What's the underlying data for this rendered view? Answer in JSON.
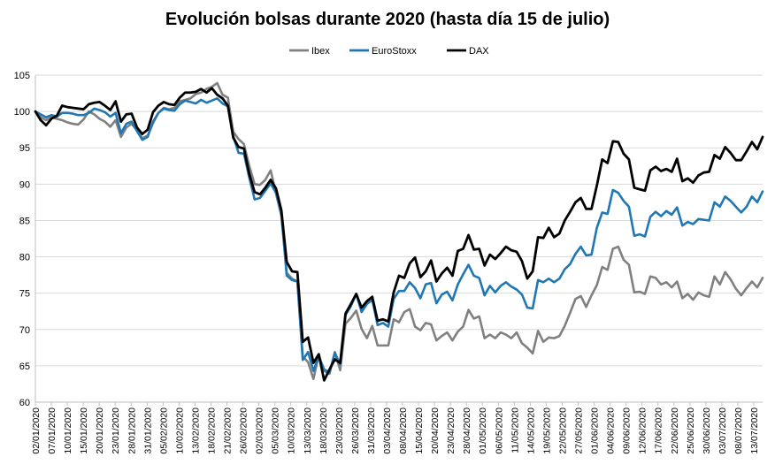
{
  "chart_data": {
    "type": "line",
    "title": "Evolución bolsas durante 2020 (hasta día 15 de julio)",
    "legend_position": "top",
    "grid": {
      "horizontal": true,
      "vertical": false
    },
    "ylim": [
      60,
      105
    ],
    "yticks": [
      "60",
      "65",
      "70",
      "75",
      "80",
      "85",
      "90",
      "95",
      "100",
      "105"
    ],
    "x_tick_labels": [
      "02/01/2020",
      "07/01/2020",
      "10/01/2020",
      "15/01/2020",
      "20/01/2020",
      "23/01/2020",
      "28/01/2020",
      "31/01/2020",
      "05/02/2020",
      "10/02/2020",
      "13/02/2020",
      "18/02/2020",
      "21/02/2020",
      "26/02/2020",
      "02/03/2020",
      "05/03/2020",
      "10/03/2020",
      "13/03/2020",
      "18/03/2020",
      "23/03/2020",
      "26/03/2020",
      "31/03/2020",
      "03/04/2020",
      "08/04/2020",
      "15/04/2020",
      "20/04/2020",
      "23/04/2020",
      "28/04/2020",
      "01/05/2020",
      "06/05/2020",
      "11/05/2020",
      "14/05/2020",
      "19/05/2020",
      "22/05/2020",
      "27/05/2020",
      "01/06/2020",
      "04/06/2020",
      "09/06/2020",
      "12/06/2020",
      "17/06/2020",
      "22/06/2020",
      "25/06/2020",
      "30/06/2020",
      "03/07/2020",
      "08/07/2020",
      "13/07/2020"
    ],
    "series": [
      {
        "name": "Ibex",
        "color": "#808080",
        "values": [
          100,
          99.2,
          98.8,
          99.2,
          99.0,
          98.8,
          98.5,
          98.3,
          98.2,
          98.9,
          100.0,
          99.6,
          99.0,
          98.6,
          97.9,
          98.8,
          96.5,
          97.8,
          98.3,
          97.4,
          96.3,
          96.7,
          98.4,
          99.8,
          100.5,
          100.3,
          100.5,
          101.4,
          101.6,
          101.8,
          102.4,
          102.6,
          103.1,
          103.4,
          103.9,
          102.3,
          101.9,
          97.2,
          96.2,
          95.5,
          92.5,
          90.0,
          89.9,
          90.6,
          91.9,
          88.7,
          85.6,
          77.8,
          77.0,
          76.6,
          66.3,
          65.5,
          63.2,
          66.5,
          64.3,
          63.9,
          66.9,
          64.4,
          70.8,
          71.6,
          72.6,
          70.1,
          68.8,
          70.5,
          67.8,
          67.8,
          67.8,
          71.4,
          71.0,
          72.4,
          72.8,
          70.4,
          69.9,
          70.9,
          70.7,
          68.5,
          69.1,
          69.6,
          68.5,
          69.7,
          70.4,
          72.7,
          71.5,
          71.8,
          68.8,
          69.3,
          68.8,
          69.6,
          69.3,
          68.8,
          69.6,
          68.1,
          67.5,
          66.7,
          69.8,
          68.3,
          68.9,
          68.8,
          69.1,
          70.5,
          72.3,
          74.2,
          74.6,
          73.1,
          74.7,
          76.1,
          78.6,
          78.2,
          81.1,
          81.4,
          79.6,
          78.9,
          75.1,
          75.2,
          74.9,
          77.3,
          77.1,
          76.2,
          76.5,
          75.8,
          76.6,
          74.3,
          74.9,
          74.1,
          75.1,
          74.7,
          74.5,
          77.3,
          76.2,
          77.9,
          76.9,
          75.6,
          74.7,
          75.7,
          76.6,
          75.8,
          77.1
        ]
      },
      {
        "name": "EuroStoxx",
        "color": "#1F77B4",
        "values": [
          100,
          99.6,
          99.2,
          99.5,
          99.3,
          99.8,
          99.8,
          99.7,
          99.5,
          99.5,
          99.8,
          100.4,
          100.2,
          99.9,
          99.3,
          99.8,
          97.0,
          98.3,
          98.6,
          97.3,
          96.1,
          96.5,
          98.6,
          99.8,
          100.4,
          100.2,
          100.1,
          101.0,
          101.5,
          101.3,
          101.1,
          101.6,
          101.2,
          101.5,
          101.8,
          101.1,
          100.7,
          96.6,
          94.3,
          94.2,
          90.9,
          87.9,
          88.1,
          89.1,
          90.1,
          88.8,
          86.1,
          77.4,
          76.8,
          76.6,
          65.8,
          66.9,
          64.3,
          66.3,
          64.5,
          64.1,
          66.8,
          65.2,
          72.0,
          73.2,
          74.9,
          72.4,
          73.5,
          74.1,
          70.6,
          70.9,
          70.4,
          74.2,
          75.3,
          75.3,
          76.5,
          75.7,
          74.3,
          76.2,
          76.4,
          73.6,
          74.8,
          75.2,
          74.0,
          76.2,
          77.6,
          78.9,
          77.4,
          77.1,
          74.7,
          76.0,
          75.1,
          76.0,
          76.5,
          75.9,
          75.5,
          74.8,
          73.0,
          72.9,
          76.8,
          76.5,
          77.0,
          76.5,
          77.0,
          78.3,
          79.0,
          80.4,
          81.4,
          80.2,
          80.3,
          84.0,
          86.1,
          85.9,
          89.2,
          88.8,
          87.7,
          86.9,
          82.9,
          83.1,
          82.8,
          85.5,
          86.2,
          85.6,
          86.3,
          85.8,
          86.8,
          84.3,
          84.8,
          84.5,
          85.2,
          85.1,
          85.0,
          87.5,
          86.9,
          88.3,
          87.7,
          86.9,
          86.1,
          86.9,
          88.3,
          87.5,
          89.0
        ]
      },
      {
        "name": "DAX",
        "color": "#000000",
        "values": [
          100,
          98.8,
          98.1,
          99.0,
          99.4,
          100.8,
          100.6,
          100.5,
          100.4,
          100.3,
          101.0,
          101.2,
          101.3,
          100.8,
          100.2,
          101.4,
          98.6,
          99.6,
          99.7,
          97.8,
          96.9,
          97.5,
          99.9,
          100.8,
          101.3,
          101.0,
          100.9,
          101.9,
          102.6,
          102.6,
          102.7,
          103.1,
          102.6,
          103.2,
          102.3,
          101.8,
          100.8,
          96.4,
          95.1,
          94.9,
          91.4,
          88.9,
          88.6,
          89.5,
          90.6,
          89.4,
          86.4,
          79.3,
          78.0,
          77.9,
          68.3,
          68.9,
          65.4,
          66.6,
          63.0,
          64.5,
          65.9,
          65.4,
          72.2,
          73.5,
          74.9,
          73.0,
          73.9,
          74.5,
          71.2,
          71.4,
          71.1,
          75.1,
          77.4,
          77.1,
          79.1,
          79.9,
          77.2,
          78.0,
          79.5,
          76.6,
          77.7,
          78.5,
          77.4,
          80.8,
          81.1,
          83.0,
          81.0,
          81.1,
          78.8,
          80.3,
          79.7,
          80.5,
          81.4,
          80.9,
          80.7,
          79.4,
          77.0,
          78.0,
          82.7,
          82.6,
          84.0,
          82.7,
          83.2,
          85.0,
          86.2,
          87.5,
          88.1,
          86.6,
          86.6,
          89.8,
          93.4,
          92.9,
          95.9,
          95.8,
          94.2,
          93.4,
          89.5,
          89.3,
          89.1,
          91.9,
          92.4,
          91.8,
          92.1,
          91.7,
          93.5,
          90.4,
          90.8,
          90.2,
          91.2,
          91.6,
          91.7,
          94.0,
          93.5,
          95.1,
          94.3,
          93.3,
          93.3,
          94.5,
          95.8,
          94.8,
          96.5
        ]
      }
    ]
  }
}
